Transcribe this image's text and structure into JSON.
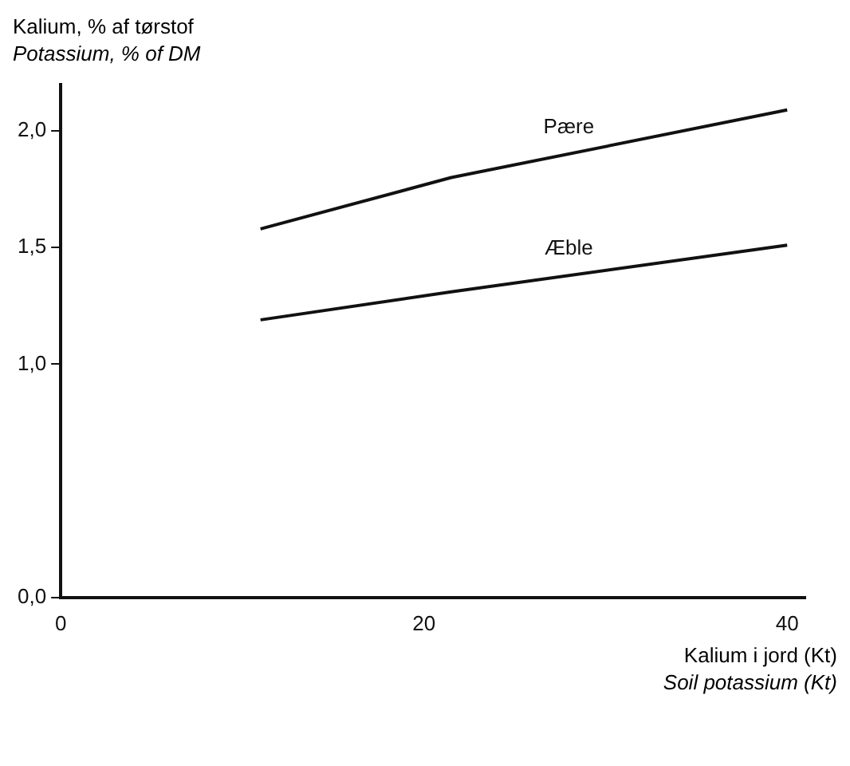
{
  "chart_data": {
    "type": "line",
    "xlabel": "Kalium i jord (Kt)\nSoil potassium (Kt)",
    "ylabel": "Kalium, % af tørstof\nPotassium, % of DM",
    "xlim": [
      0,
      41
    ],
    "xticks": [
      0,
      20,
      40
    ],
    "ylim": [
      0,
      2.2
    ],
    "yticks": [
      {
        "value": 0,
        "label": "0,0"
      },
      {
        "value": 1,
        "label": "1,0"
      },
      {
        "value": 1.5,
        "label": "1,5"
      },
      {
        "value": 2,
        "label": "2,0"
      }
    ],
    "grid": false,
    "legend": false,
    "marker": "none",
    "line_style": "solid",
    "series": [
      {
        "name": "Pære",
        "color": "#111111",
        "x": [
          11,
          21.5,
          40
        ],
        "values": [
          1.58,
          1.8,
          2.09
        ]
      },
      {
        "name": "Æble",
        "color": "#111111",
        "x": [
          11,
          21.5,
          40
        ],
        "values": [
          1.19,
          1.31,
          1.51
        ]
      }
    ]
  }
}
